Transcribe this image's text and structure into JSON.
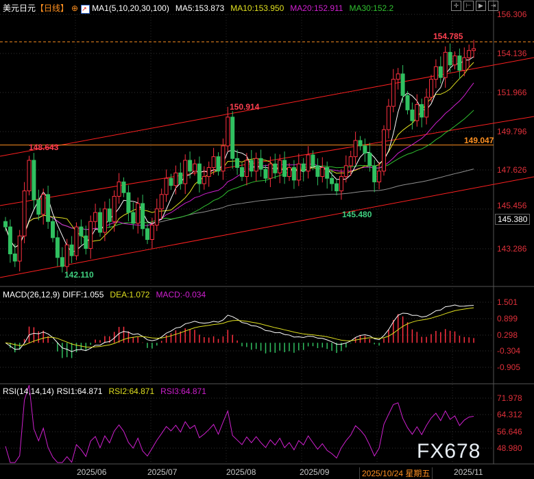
{
  "header": {
    "symbol": "美元日元",
    "period": "【日线】",
    "ma_title": "MA1(5,10,20,30,100)",
    "ma5": "MA5:153.873",
    "ma10": "MA10:153.950",
    "ma20": "MA20:152.911",
    "ma30": "MA30:152.2"
  },
  "macd_header": {
    "title": "MACD(26,12,9)",
    "diff": "DIFF:1.055",
    "dea": "DEA:1.072",
    "macd": "MACD:-0.034"
  },
  "rsi_header": {
    "title": "RSI(14,14,14)",
    "rsi1": "RSI1:64.871",
    "rsi2": "RSI2:64.871",
    "rsi3": "RSI3:64.871"
  },
  "toolbar": [
    "crosshair-icon",
    "zoom-left-icon",
    "zoom-right-icon",
    "scroll-end-icon"
  ],
  "watermark": "FX678",
  "colors": {
    "up": "#ff3040",
    "down": "#30c060",
    "ma5": "#ffffff",
    "ma10": "#e0e020",
    "ma20": "#d020d0",
    "ma30": "#30c030",
    "ma100": "#909090",
    "channel": "#ff2020",
    "level": "#ff9020"
  },
  "chart_data": {
    "type": "candlestick",
    "price_axis_ticks": [
      "156.306",
      "154.136",
      "151.966",
      "149.796",
      "147.626",
      "145.456",
      "143.286"
    ],
    "current_price": "145.380",
    "annotations": {
      "high": "154.785",
      "level": "149.047",
      "peak1": "148.643",
      "peak2": "150.914",
      "low1": "142.110",
      "low2": "145.480"
    },
    "macd_axis_ticks": [
      "1.501",
      "0.899",
      "0.298",
      "-0.304",
      "-0.905"
    ],
    "rsi_axis_ticks": [
      "71.978",
      "64.312",
      "56.646",
      "48.980"
    ],
    "date_ticks": [
      "2025/06",
      "2025/07",
      "2025/08",
      "2025/09",
      "2025/10/24 星期五",
      "2025/11"
    ],
    "closes": [
      144.5,
      143.0,
      142.6,
      144.0,
      146.5,
      148.2,
      146.0,
      145.2,
      146.3,
      144.8,
      143.9,
      142.8,
      142.3,
      143.5,
      142.9,
      144.5,
      144.0,
      143.3,
      144.8,
      145.3,
      144.2,
      145.5,
      144.8,
      146.2,
      147.0,
      146.4,
      145.3,
      144.7,
      145.8,
      144.4,
      143.8,
      144.6,
      145.5,
      146.3,
      147.2,
      146.8,
      147.5,
      146.9,
      148.2,
      147.6,
      148.0,
      146.9,
      147.3,
      147.8,
      148.4,
      147.6,
      149.0,
      150.6,
      148.3,
      147.8,
      147.3,
      148.2,
      147.6,
      148.3,
      147.7,
      147.2,
      148.0,
      147.5,
      148.2,
      147.3,
      147.8,
      147.1,
      148.0,
      147.6,
      148.5,
      147.9,
      147.3,
      147.8,
      147.2,
      146.9,
      146.5,
      147.3,
      147.9,
      148.4,
      149.3,
      149.0,
      148.6,
      147.9,
      147.0,
      147.6,
      149.9,
      151.2,
      152.7,
      153.0,
      151.8,
      151.0,
      150.4,
      151.3,
      150.6,
      151.7,
      152.7,
      153.4,
      152.8,
      154.2,
      153.5,
      154.0,
      153.2,
      153.9,
      154.3,
      154.4
    ]
  }
}
